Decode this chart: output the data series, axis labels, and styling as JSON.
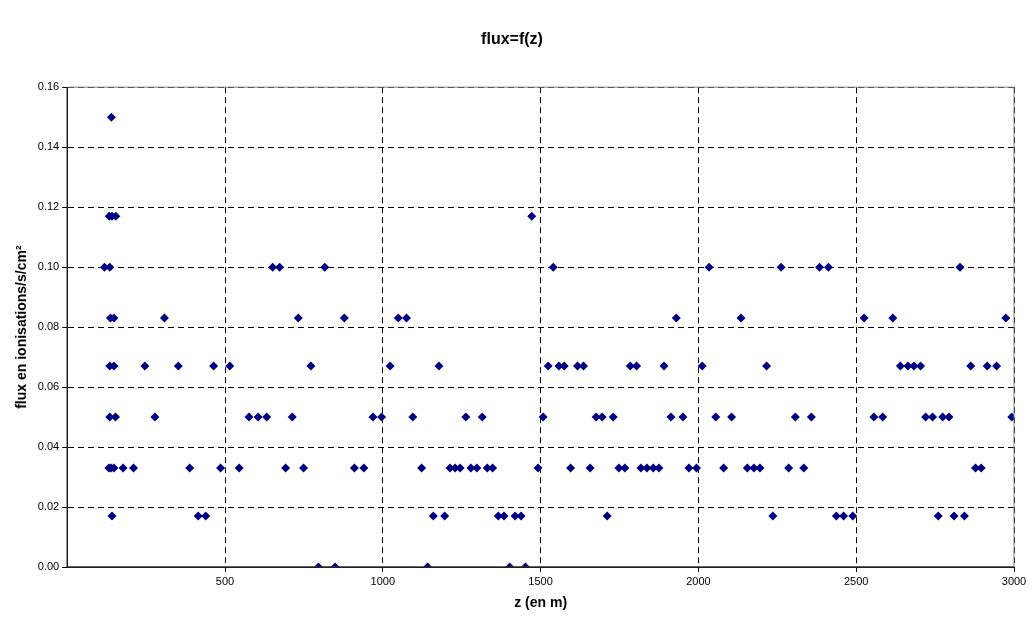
{
  "chart_data": {
    "type": "scatter",
    "title": "flux=f(z)",
    "xlabel": "z (en m)",
    "ylabel": "flux en ionisations/s/cm²",
    "xlim": [
      0,
      3000
    ],
    "xticks": [
      500,
      1000,
      1500,
      2000,
      2500,
      3000
    ],
    "ylim": [
      0,
      0.16
    ],
    "yticks": [
      {
        "value": 0,
        "label": "0.00"
      },
      {
        "value": 0.02,
        "label": "0.02"
      },
      {
        "value": 0.04,
        "label": "0.04"
      },
      {
        "value": 0.06,
        "label": "0.06"
      },
      {
        "value": 0.08,
        "label": "0.08"
      },
      {
        "value": 0.1,
        "label": "0.10"
      },
      {
        "value": 0.12,
        "label": "0.12"
      },
      {
        "value": 0.14,
        "label": "0.14"
      },
      {
        "value": 0.16,
        "label": "0.16"
      }
    ],
    "grid": true,
    "legend": false,
    "marker": "diamond",
    "series": [
      {
        "color": "#000080",
        "x": [
          140,
          133,
          142,
          154,
          1472,
          118,
          135,
          651,
          673,
          816,
          1540,
          2034,
          2262,
          2384,
          2412,
          2829,
          137,
          148,
          308,
          732,
          878,
          1049,
          1075,
          1930,
          2135,
          2525,
          2616,
          2974,
          135,
          148,
          246,
          352,
          464,
          515,
          772,
          1023,
          1178,
          1524,
          1558,
          1575,
          1617,
          1636,
          1784,
          1804,
          1891,
          2012,
          2216,
          2640,
          2664,
          2683,
          2704,
          2863,
          2915,
          2945,
          135,
          153,
          278,
          576,
          605,
          632,
          713,
          969,
          996,
          1095,
          1263,
          1315,
          1508,
          1676,
          1695,
          1730,
          1913,
          1951,
          2055,
          2105,
          2307,
          2358,
          2556,
          2584,
          2720,
          2742,
          2774,
          2794,
          2993,
          132,
          139,
          148,
          177,
          210,
          388,
          486,
          545,
          692,
          749,
          910,
          940,
          1123,
          1213,
          1229,
          1245,
          1279,
          1298,
          1331,
          1348,
          1492,
          1595,
          1657,
          1748,
          1767,
          1818,
          1837,
          1857,
          1875,
          1970,
          1994,
          2080,
          2155,
          2176,
          2195,
          2286,
          2334,
          2878,
          2896,
          142,
          415,
          439,
          1160,
          1196,
          1366,
          1384,
          1419,
          1438,
          1711,
          2236,
          2437,
          2460,
          2489,
          2760,
          2810,
          2843,
          796,
          849,
          1142,
          1402,
          1452
        ],
        "values": [
          0.15,
          0.117,
          0.117,
          0.117,
          0.117,
          0.1,
          0.1,
          0.1,
          0.1,
          0.1,
          0.1,
          0.1,
          0.1,
          0.1,
          0.1,
          0.1,
          0.083,
          0.083,
          0.083,
          0.083,
          0.083,
          0.083,
          0.083,
          0.083,
          0.083,
          0.083,
          0.083,
          0.083,
          0.067,
          0.067,
          0.067,
          0.067,
          0.067,
          0.067,
          0.067,
          0.067,
          0.067,
          0.067,
          0.067,
          0.067,
          0.067,
          0.067,
          0.067,
          0.067,
          0.067,
          0.067,
          0.067,
          0.067,
          0.067,
          0.067,
          0.067,
          0.067,
          0.067,
          0.067,
          0.05,
          0.05,
          0.05,
          0.05,
          0.05,
          0.05,
          0.05,
          0.05,
          0.05,
          0.05,
          0.05,
          0.05,
          0.05,
          0.05,
          0.05,
          0.05,
          0.05,
          0.05,
          0.05,
          0.05,
          0.05,
          0.05,
          0.05,
          0.05,
          0.05,
          0.05,
          0.05,
          0.05,
          0.05,
          0.033,
          0.033,
          0.033,
          0.033,
          0.033,
          0.033,
          0.033,
          0.033,
          0.033,
          0.033,
          0.033,
          0.033,
          0.033,
          0.033,
          0.033,
          0.033,
          0.033,
          0.033,
          0.033,
          0.033,
          0.033,
          0.033,
          0.033,
          0.033,
          0.033,
          0.033,
          0.033,
          0.033,
          0.033,
          0.033,
          0.033,
          0.033,
          0.033,
          0.033,
          0.033,
          0.033,
          0.033,
          0.033,
          0.033,
          0.017,
          0.017,
          0.017,
          0.017,
          0.017,
          0.017,
          0.017,
          0.017,
          0.017,
          0.017,
          0.017,
          0.017,
          0.017,
          0.017,
          0.017,
          0.017,
          0.017,
          0,
          0,
          0,
          0,
          0
        ]
      }
    ]
  }
}
